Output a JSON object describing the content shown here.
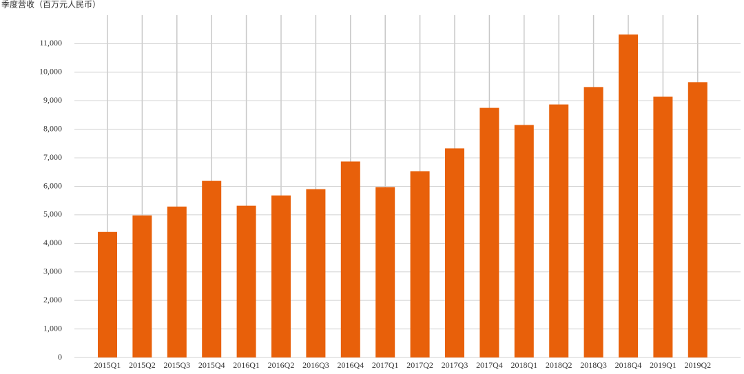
{
  "chart_data": {
    "type": "bar",
    "title": "季度营收（百万元人民币）",
    "categories": [
      "2015Q1",
      "2015Q2",
      "2015Q3",
      "2015Q4",
      "2016Q1",
      "2016Q2",
      "2016Q3",
      "2016Q4",
      "2017Q1",
      "2017Q2",
      "2017Q3",
      "2017Q4",
      "2018Q1",
      "2018Q2",
      "2018Q3",
      "2018Q4",
      "2019Q1",
      "2019Q2"
    ],
    "values": [
      4400,
      4980,
      5290,
      6190,
      5320,
      5680,
      5900,
      6870,
      5970,
      6530,
      7330,
      8750,
      8150,
      8870,
      9480,
      11320,
      9140,
      9650
    ],
    "color": "#e8600a",
    "ylim": [
      0,
      12000
    ],
    "yticks": [
      0,
      {
        "value": 1000,
        "label": "1,000"
      },
      {
        "value": 2000,
        "label": "2,000"
      },
      {
        "value": 3000,
        "label": "3,000"
      },
      {
        "value": 4000,
        "label": "4,000"
      },
      {
        "value": 5000,
        "label": "5,000"
      },
      {
        "value": 6000,
        "label": "6,000"
      },
      {
        "value": 7000,
        "label": "7,000"
      },
      {
        "value": 8000,
        "label": "8,000"
      },
      {
        "value": 9000,
        "label": "9,000"
      },
      {
        "value": 10000,
        "label": "10,000"
      },
      {
        "value": 11000,
        "label": "11,000"
      }
    ],
    "grid": true
  }
}
